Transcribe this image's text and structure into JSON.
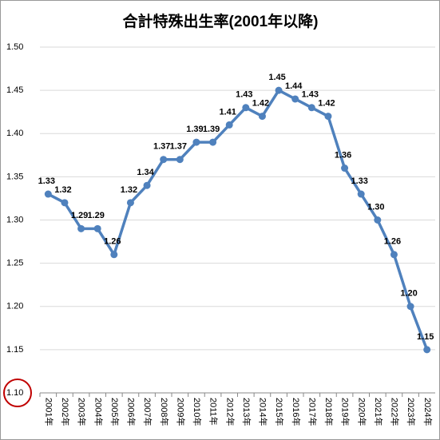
{
  "chart_data": {
    "type": "line",
    "title": "合計特殊出生率(2001年以降)",
    "categories": [
      "2001年",
      "2002年",
      "2003年",
      "2004年",
      "2005年",
      "2006年",
      "2007年",
      "2008年",
      "2009年",
      "2010年",
      "2011年",
      "2012年",
      "2013年",
      "2014年",
      "2015年",
      "2016年",
      "2017年",
      "2018年",
      "2019年",
      "2020年",
      "2021年",
      "2022年",
      "2023年",
      "2024年"
    ],
    "series": [
      {
        "name": "合計特殊出生率",
        "color": "#4f81bd",
        "values": [
          1.33,
          1.32,
          1.29,
          1.29,
          1.26,
          1.32,
          1.34,
          1.37,
          1.37,
          1.39,
          1.39,
          1.41,
          1.43,
          1.42,
          1.45,
          1.44,
          1.43,
          1.42,
          1.36,
          1.33,
          1.3,
          1.26,
          1.2,
          1.15
        ],
        "value_labels": [
          "1.33",
          "1.32",
          "1.29",
          "1.29",
          "1.26",
          "1.32",
          "1.34",
          "1.37",
          "1.37",
          "1.39",
          "1.39",
          "1.41",
          "1.43",
          "1.42",
          "1.45",
          "1.44",
          "1.43",
          "1.42",
          "1.36",
          "1.33",
          "1.30",
          "1.26",
          "1.20",
          "1.15"
        ]
      }
    ],
    "ylim": [
      1.1,
      1.5
    ],
    "yticks": [
      {
        "value": 1.1,
        "label": "1.10"
      },
      1.15,
      {
        "value": 1.2,
        "label": "1.20"
      },
      1.25,
      {
        "value": 1.3,
        "label": "1.30"
      },
      1.35,
      {
        "value": 1.4,
        "label": "1.40"
      },
      1.45,
      {
        "value": 1.5,
        "label": "1.50"
      }
    ],
    "grid": true
  }
}
